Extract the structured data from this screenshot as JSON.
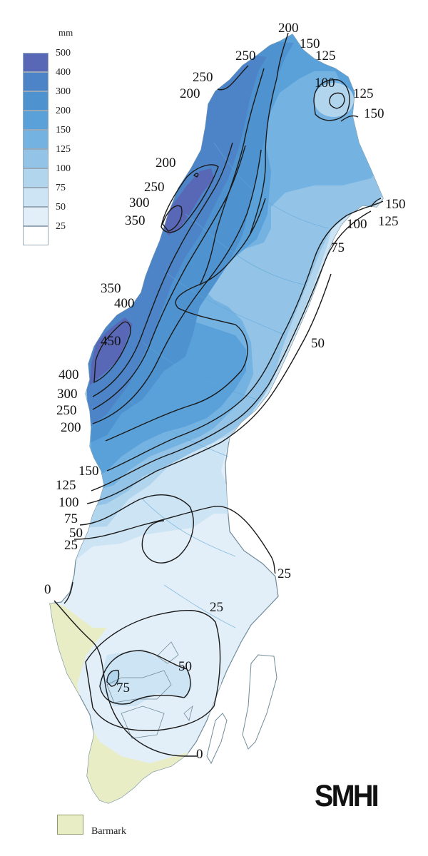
{
  "legend": {
    "unit": "mm",
    "bins": [
      {
        "label": "500",
        "color": "#5867b6"
      },
      {
        "label": "400",
        "color": "#4d84c7"
      },
      {
        "label": "300",
        "color": "#4f92d0"
      },
      {
        "label": "200",
        "color": "#5aa1da"
      },
      {
        "label": "150",
        "color": "#74b2e1"
      },
      {
        "label": "125",
        "color": "#93c4e8"
      },
      {
        "label": "100",
        "color": "#b2d5ee"
      },
      {
        "label": "75",
        "color": "#cde4f4"
      },
      {
        "label": "50",
        "color": "#e3eff8"
      },
      {
        "label": "25",
        "color": "#ffffff"
      }
    ]
  },
  "bare_ground": {
    "label": "Barmark",
    "color": "#e8edc6"
  },
  "logo": "SMHI",
  "contour_labels": [
    "200",
    "150",
    "125",
    "250",
    "100",
    "125",
    "250",
    "150",
    "200",
    "200",
    "250",
    "300",
    "350",
    "150",
    "125",
    "100",
    "75",
    "350",
    "400",
    "450",
    "50",
    "400",
    "300",
    "250",
    "200",
    "150",
    "125",
    "100",
    "75",
    "50",
    "25",
    "25",
    "0",
    "25",
    "50",
    "75",
    "0"
  ]
}
